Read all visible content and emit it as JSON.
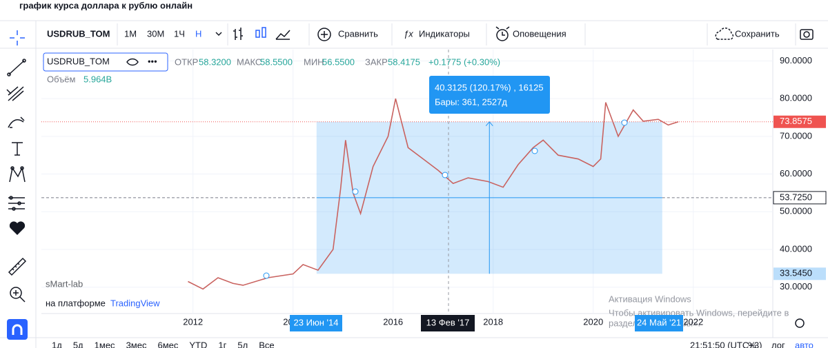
{
  "page_title": "график курса доллара к рублю онлайн",
  "toolbar": {
    "symbol": "USDRUB_TOM",
    "intervals": [
      "1M",
      "30M",
      "1Ч",
      "Н"
    ],
    "compare": "Сравнить",
    "indicators": "Индикаторы",
    "alerts": "Оповещения",
    "save": "Сохранить"
  },
  "legend": {
    "symbol": "USDRUB_TOM",
    "open_label": "ОТКР",
    "open": "58.3200",
    "high_label": "МАКС",
    "high": "58.5500",
    "low_label": "МИН",
    "low": "56.5500",
    "close_label": "ЗАКР",
    "close": "58.4175",
    "change": "+0.1775 (+0.30%)",
    "volume_label": "Объём",
    "volume": "5.964B"
  },
  "watermark": {
    "brand": "sMart-lab",
    "platform_prefix": "на платформе",
    "platform": "TradingView"
  },
  "windows_notice": {
    "title": "Активация Windows",
    "text": "Чтобы активировать Windows, перейдите в",
    "text2": "раздел «Параметры»."
  },
  "bottom_bar": {
    "ranges": [
      "1д",
      "5д",
      "1мес",
      "3мес",
      "6мес",
      "YTD",
      "1г",
      "5л",
      "Все"
    ],
    "clock": "21:51:50 (UTC+3)",
    "percent": "%",
    "log": "лог",
    "auto": "авто"
  },
  "chart_data": {
    "type": "line",
    "color": "#c9625f",
    "x": [
      2011.9,
      2012.2,
      2012.5,
      2012.8,
      2013.0,
      2013.5,
      2014.0,
      2014.2,
      2014.5,
      2014.8,
      2014.95,
      2015.05,
      2015.2,
      2015.35,
      2015.6,
      2015.9,
      2016.05,
      2016.3,
      2016.6,
      2016.9,
      2017.2,
      2017.5,
      2017.9,
      2018.2,
      2018.5,
      2018.8,
      2019.0,
      2019.3,
      2019.7,
      2020.0,
      2020.15,
      2020.25,
      2020.5,
      2020.8,
      2021.0,
      2021.3,
      2021.5,
      2021.7
    ],
    "values": [
      31.5,
      29.5,
      32.5,
      31,
      30.5,
      32.5,
      33.5,
      36,
      34.5,
      40,
      56,
      69,
      55,
      49.5,
      62,
      70,
      80,
      67,
      64,
      61,
      57.5,
      59,
      58,
      56.5,
      62.5,
      67,
      69,
      65,
      64,
      62,
      64,
      79,
      70,
      77,
      74,
      74.5,
      73,
      73.86
    ],
    "xlim": [
      2008.97,
      2023.59
    ],
    "xticks": [
      2012,
      2014,
      2016,
      2018,
      2020,
      2022
    ],
    "ylim": [
      23,
      93
    ],
    "yticks": [
      {
        "value": 30,
        "label": "30.0000"
      },
      {
        "value": 40,
        "label": "40.0000"
      },
      {
        "value": 50,
        "label": "50.0000"
      },
      {
        "value": 60,
        "label": "60.0000"
      },
      {
        "value": 70,
        "label": "70.0000"
      },
      {
        "value": 80,
        "label": "80.0000"
      },
      {
        "value": 90,
        "label": "90.0000"
      }
    ],
    "grid": true,
    "price_labels": [
      {
        "value": 73.8575,
        "label": "73.8575"
      },
      {
        "value": 53.725,
        "label": "53.7250"
      },
      {
        "value": 33.545,
        "label": "33.5450"
      }
    ],
    "measure": {
      "line1": "40.3125 (120.17%) , 16125",
      "line2": "Бары: 361, 2527д",
      "x_from": 2014.47,
      "x_to": 2021.38
    },
    "date_labels": [
      "23 Июн '14",
      "13 Фев '17",
      "24 Май '21"
    ]
  }
}
